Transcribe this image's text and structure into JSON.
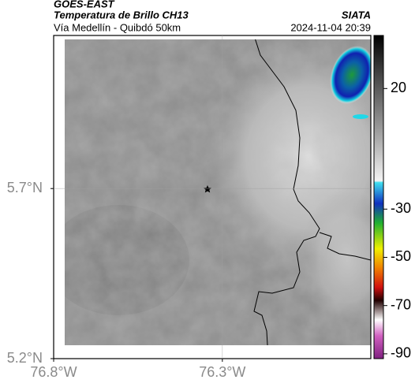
{
  "header": {
    "title": "GOES-EAST",
    "subtitle": "Temperatura de Brillo CH13",
    "source": "SIATA",
    "route": "Vía Medellín - Quibdó 50km",
    "datetime": "2024-11-04 20:39"
  },
  "map": {
    "xlim": [
      -76.8,
      -75.86
    ],
    "ylim": [
      5.2,
      6.15
    ],
    "xticks": [
      {
        "value": -76.8,
        "label": "76.8°W"
      },
      {
        "value": -76.3,
        "label": "76.3°W"
      }
    ],
    "yticks": [
      {
        "value": 5.2,
        "label": "5.2°N"
      },
      {
        "value": 5.7,
        "label": "5.7°N"
      }
    ]
  },
  "colorbar": {
    "lim": [
      -92,
      42
    ],
    "ticks": [
      20,
      -30,
      -50,
      -70,
      -90
    ]
  }
}
